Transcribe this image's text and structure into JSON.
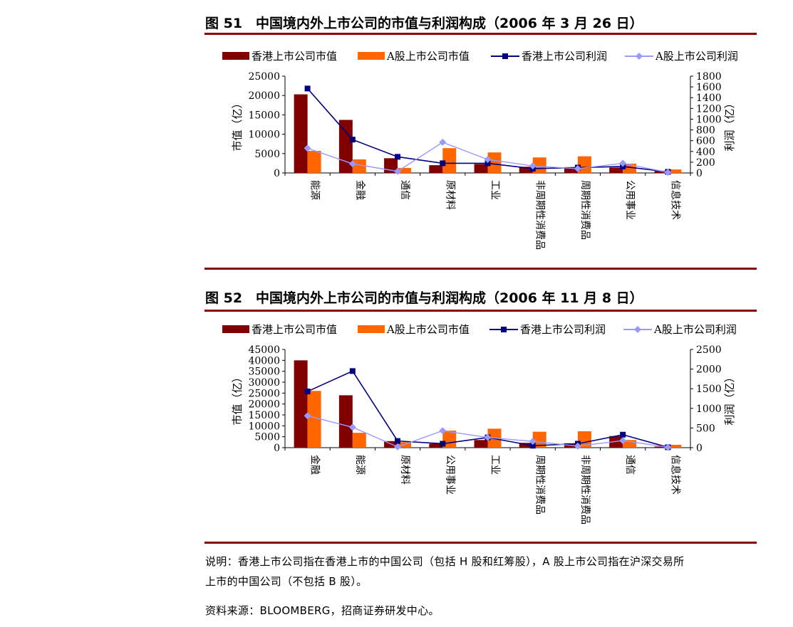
{
  "fig1_title": "图 51　中国境内外上市公司的市值与利润构成（2006 年 3 月 26 日）",
  "fig2_title": "图 52　中国境内外上市公司的市值与利润构成（2006 年 11 月 8 日）",
  "note_line1": "说明：香港上市公司指在香港上市的中国公司（包括 H 股和红筹股），A 股上市公司指在沪深交易所",
  "note_line2": "上市的中国公司（不包括 B 股）。",
  "source": "资料来源：BLOOMBERG，招商证券研发中心。",
  "colors": {
    "hk_value": "#800000",
    "a_value": "#ff6600",
    "hk_profit": "#000080",
    "a_profit": "#9999ff",
    "rule": "#8b0000"
  },
  "chart_data": [
    {
      "type": "bar",
      "categories": [
        "能源",
        "金融",
        "通信",
        "原材料",
        "工业",
        "非周期性消费品",
        "周期性消费品",
        "公用事业",
        "信息技术"
      ],
      "ylabel": "市值（亿）",
      "ylabel_right": "利润（亿）",
      "ylim": [
        0,
        25000
      ],
      "yticks": [
        0,
        5000,
        10000,
        15000,
        20000,
        25000
      ],
      "ylim_right": [
        0,
        1800
      ],
      "yticks_right": [
        0,
        200,
        400,
        600,
        800,
        1000,
        1200,
        1400,
        1600,
        1800
      ],
      "legend_position": "top",
      "series": [
        {
          "name": "香港上市公司市值",
          "kind": "bar",
          "axis": "left",
          "values": [
            20300,
            13700,
            3800,
            2000,
            2300,
            1600,
            1500,
            1400,
            500
          ]
        },
        {
          "name": "A股上市公司市值",
          "kind": "bar",
          "axis": "left",
          "values": [
            5700,
            3500,
            1300,
            6400,
            5300,
            4000,
            4300,
            2400,
            900
          ]
        },
        {
          "name": "香港上市公司利润",
          "kind": "line",
          "axis": "right",
          "values": [
            1570,
            620,
            300,
            180,
            180,
            80,
            100,
            120,
            20
          ]
        },
        {
          "name": "A股上市公司利润",
          "kind": "line",
          "axis": "right",
          "values": [
            460,
            170,
            30,
            570,
            250,
            130,
            80,
            180,
            10
          ]
        }
      ]
    },
    {
      "type": "bar",
      "categories": [
        "金融",
        "能源",
        "原材料",
        "公用事业",
        "工业",
        "周期性消费品",
        "非周期性消费品",
        "通信",
        "信息技术"
      ],
      "ylabel": "市值（亿）",
      "ylabel_right": "利润（亿）",
      "ylim": [
        0,
        45000
      ],
      "yticks": [
        0,
        5000,
        10000,
        15000,
        20000,
        25000,
        30000,
        35000,
        40000,
        45000
      ],
      "ylim_right": [
        0,
        2500
      ],
      "yticks_right": [
        0,
        500,
        1000,
        1500,
        2000,
        2500
      ],
      "legend_position": "top",
      "series": [
        {
          "name": "香港上市公司市值",
          "kind": "bar",
          "axis": "left",
          "values": [
            40000,
            24000,
            3000,
            1800,
            3500,
            2200,
            2000,
            5300,
            500
          ]
        },
        {
          "name": "A股上市公司市值",
          "kind": "bar",
          "axis": "left",
          "values": [
            26000,
            6800,
            2500,
            7800,
            8700,
            7300,
            7500,
            3500,
            1300
          ]
        },
        {
          "name": "香港上市公司利润",
          "kind": "line",
          "axis": "right",
          "values": [
            1430,
            1950,
            170,
            100,
            260,
            50,
            100,
            330,
            10
          ]
        },
        {
          "name": "A股上市公司利润",
          "kind": "line",
          "axis": "right",
          "values": [
            810,
            520,
            20,
            430,
            260,
            160,
            40,
            180,
            10
          ]
        }
      ]
    }
  ]
}
